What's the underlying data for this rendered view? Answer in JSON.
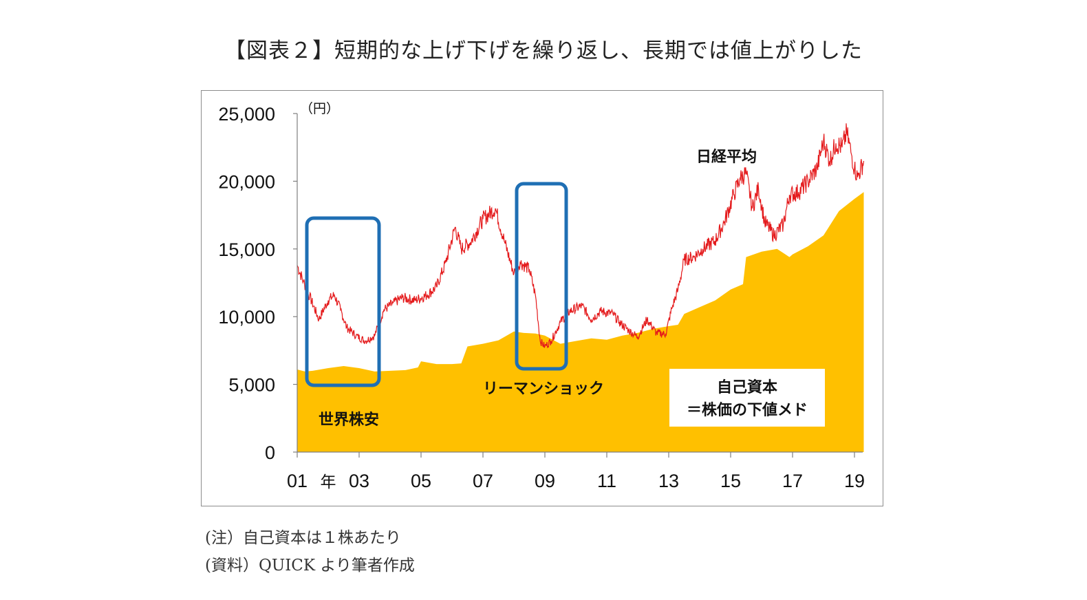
{
  "title": "【図表２】短期的な上げ下げを繰り返し、長期では値上がりした",
  "notes": [
    "(注）自己資本は１株あたり",
    "(資料）QUICK より筆者作成"
  ],
  "chart_data": {
    "type": "area",
    "unit_label": "（円）",
    "year_marker": "年",
    "ylim": [
      0,
      25000
    ],
    "xlim": [
      2001,
      2019.5
    ],
    "y_ticks": [
      {
        "value": 0,
        "label": "0"
      },
      {
        "value": 5000,
        "label": "5,000"
      },
      {
        "value": 10000,
        "label": "10,000"
      },
      {
        "value": 15000,
        "label": "15,000"
      },
      {
        "value": 20000,
        "label": "20,000"
      },
      {
        "value": 25000,
        "label": "25,000"
      }
    ],
    "x_ticks": [
      {
        "value": 2001,
        "label": "01"
      },
      {
        "value": 2003,
        "label": "03"
      },
      {
        "value": 2005,
        "label": "05"
      },
      {
        "value": 2007,
        "label": "07"
      },
      {
        "value": 2009,
        "label": "09"
      },
      {
        "value": 2011,
        "label": "11"
      },
      {
        "value": 2013,
        "label": "13"
      },
      {
        "value": 2015,
        "label": "15"
      },
      {
        "value": 2017,
        "label": "17"
      },
      {
        "value": 2019,
        "label": "19"
      }
    ],
    "series": [
      {
        "name": "自己資本\n＝株価の下値メド",
        "kind": "area",
        "color": "#ffc000",
        "x": [
          2001,
          2001.25,
          2001.5,
          2002,
          2002.5,
          2003,
          2003.5,
          2004,
          2004.5,
          2004.9,
          2005,
          2005.5,
          2006,
          2006.3,
          2006.5,
          2007,
          2007.5,
          2008,
          2008.3,
          2008.7,
          2009,
          2009.5,
          2010,
          2010.5,
          2011,
          2011.5,
          2012,
          2012.5,
          2013,
          2013.3,
          2013.5,
          2014,
          2014.5,
          2015,
          2015.4,
          2015.5,
          2016,
          2016.5,
          2016.9,
          2017,
          2017.5,
          2018,
          2018.5,
          2019,
          2019.3
        ],
        "y": [
          6100,
          5950,
          6000,
          6200,
          6350,
          6200,
          5950,
          6000,
          6050,
          6250,
          6700,
          6500,
          6500,
          6550,
          7800,
          8000,
          8250,
          8900,
          8800,
          8750,
          8600,
          8000,
          8200,
          8400,
          8300,
          8600,
          8800,
          9100,
          9300,
          9400,
          10200,
          10700,
          11200,
          12000,
          12400,
          14400,
          14800,
          15000,
          14400,
          14600,
          15200,
          16000,
          17800,
          18700,
          19200
        ]
      },
      {
        "name": "日経平均",
        "kind": "line",
        "color": "#e41a1c",
        "x": [
          2001,
          2001.2,
          2001.4,
          2001.7,
          2002,
          2002.2,
          2002.4,
          2002.6,
          2002.9,
          2003.2,
          2003.5,
          2003.8,
          2004.1,
          2004.4,
          2004.8,
          2005.2,
          2005.5,
          2005.8,
          2006.1,
          2006.3,
          2006.6,
          2007,
          2007.4,
          2007.7,
          2008,
          2008.2,
          2008.5,
          2008.7,
          2008.85,
          2009,
          2009.2,
          2009.5,
          2009.8,
          2010.2,
          2010.5,
          2010.8,
          2011.2,
          2011.4,
          2011.7,
          2012,
          2012.3,
          2012.6,
          2012.9,
          2013.1,
          2013.3,
          2013.5,
          2013.8,
          2014.1,
          2014.5,
          2014.8,
          2015.1,
          2015.3,
          2015.5,
          2015.7,
          2015.9,
          2016.1,
          2016.4,
          2016.7,
          2016.9,
          2017.2,
          2017.5,
          2017.8,
          2018,
          2018.2,
          2018.4,
          2018.6,
          2018.75,
          2018.9,
          2019,
          2019.1,
          2019.3
        ],
        "y": [
          13800,
          12600,
          11500,
          9800,
          11200,
          11600,
          10500,
          9200,
          8600,
          8200,
          8600,
          10500,
          11000,
          11400,
          11200,
          11600,
          12200,
          14000,
          16600,
          15000,
          15500,
          17200,
          18000,
          15500,
          13200,
          14000,
          13500,
          11500,
          8200,
          7800,
          8200,
          9600,
          10400,
          10800,
          9800,
          10400,
          10200,
          9600,
          9000,
          8500,
          9800,
          8800,
          8700,
          10600,
          12000,
          14200,
          14400,
          15000,
          15600,
          17000,
          19000,
          20200,
          20600,
          18000,
          19500,
          17000,
          16000,
          16800,
          19000,
          19200,
          20000,
          21000,
          23000,
          21500,
          22800,
          22500,
          23600,
          22000,
          21000,
          20300,
          21500
        ]
      }
    ],
    "annotations": [
      {
        "label": "世界株安",
        "period": [
          2001.35,
          2003.6
        ]
      },
      {
        "label": "リーマンショック",
        "period": [
          2008.15,
          2009.65
        ]
      }
    ]
  }
}
